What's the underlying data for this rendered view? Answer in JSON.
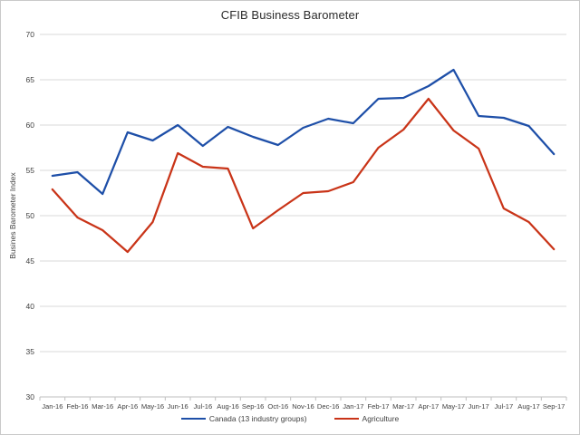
{
  "chart_data": {
    "type": "line",
    "title": "CFIB Business Barometer",
    "ylabel": "Busines Barometer Index",
    "xlabel": "",
    "ylim": [
      30,
      70
    ],
    "yticks": [
      30,
      35,
      40,
      45,
      50,
      55,
      60,
      65,
      70
    ],
    "grid": true,
    "legend_position": "bottom",
    "categories": [
      "Jan-16",
      "Feb-16",
      "Mar-16",
      "Apr-16",
      "May-16",
      "Jun-16",
      "Jul-16",
      "Aug-16",
      "Sep-16",
      "Oct-16",
      "Nov-16",
      "Dec-16",
      "Jan-17",
      "Feb-17",
      "Mar-17",
      "Apr-17",
      "May-17",
      "Jun-17",
      "Jul-17",
      "Aug-17",
      "Sep-17"
    ],
    "series": [
      {
        "name": "Canada (13 industry groups)",
        "color": "#1E4FA8",
        "values": [
          54.4,
          54.8,
          52.4,
          59.2,
          58.3,
          60.0,
          57.7,
          59.8,
          58.7,
          57.8,
          59.7,
          60.7,
          60.2,
          62.9,
          63.0,
          64.3,
          66.1,
          61.0,
          60.8,
          59.9,
          56.8
        ]
      },
      {
        "name": "Agriculture",
        "color": "#C93418",
        "values": [
          52.9,
          49.8,
          48.4,
          46.0,
          49.3,
          56.9,
          55.4,
          55.2,
          48.6,
          50.6,
          52.5,
          52.7,
          53.7,
          57.5,
          59.5,
          62.9,
          59.4,
          57.4,
          50.8,
          49.3,
          46.3
        ]
      }
    ]
  },
  "colors": {
    "gridline": "#D9D9D9",
    "axis": "#BFBFBF",
    "tick_text": "#404040",
    "title_text": "#2B2B2B",
    "background": "#FFFFFF",
    "frame_border": "#C9C9C9"
  }
}
